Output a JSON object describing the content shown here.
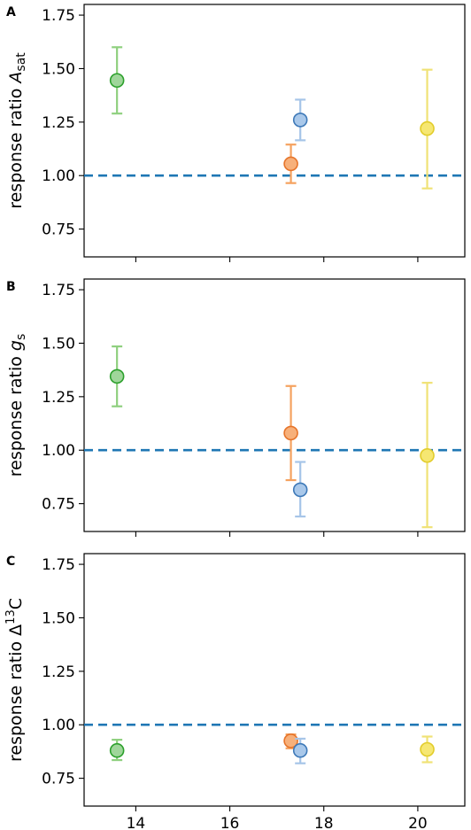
{
  "chart_data": [
    {
      "type": "scatter",
      "panel_label": "A",
      "ylabel": {
        "prefix": "response ratio ",
        "symbol": "A",
        "subscript": "sat"
      },
      "xlim": [
        12.9,
        21.0
      ],
      "ylim": [
        0.62,
        1.8
      ],
      "xticks": [
        14,
        16,
        18,
        20
      ],
      "yticks": [
        0.75,
        1.0,
        1.25,
        1.5,
        1.75
      ],
      "ytick_labels": [
        "0.75",
        "1.00",
        "1.25",
        "1.50",
        "1.75"
      ],
      "reference_line": {
        "y": 1.0,
        "style": "dashed",
        "color": "#1f77b4"
      },
      "points": [
        {
          "x": 13.6,
          "y": 1.445,
          "err_low": 1.29,
          "err_high": 1.6,
          "fill": "#9fd69a",
          "edge": "#2ca02c",
          "errcolor": "#8fd07f"
        },
        {
          "x": 17.3,
          "y": 1.055,
          "err_low": 0.965,
          "err_high": 1.145,
          "fill": "#f7b07a",
          "edge": "#e6742a",
          "errcolor": "#f5a25f"
        },
        {
          "x": 17.5,
          "y": 1.26,
          "err_low": 1.165,
          "err_high": 1.355,
          "fill": "#a9c8ea",
          "edge": "#3e79b8",
          "errcolor": "#a6c5e8"
        },
        {
          "x": 20.2,
          "y": 1.22,
          "err_low": 0.94,
          "err_high": 1.495,
          "fill": "#f6e772",
          "edge": "#e2cc2a",
          "errcolor": "#f0e276"
        }
      ]
    },
    {
      "type": "scatter",
      "panel_label": "B",
      "ylabel": {
        "prefix": "response ratio ",
        "symbol": "g",
        "subscript": "s"
      },
      "xlim": [
        12.9,
        21.0
      ],
      "ylim": [
        0.62,
        1.8
      ],
      "xticks": [
        14,
        16,
        18,
        20
      ],
      "yticks": [
        0.75,
        1.0,
        1.25,
        1.5,
        1.75
      ],
      "ytick_labels": [
        "0.75",
        "1.00",
        "1.25",
        "1.50",
        "1.75"
      ],
      "reference_line": {
        "y": 1.0,
        "style": "dashed",
        "color": "#1f77b4"
      },
      "points": [
        {
          "x": 13.6,
          "y": 1.345,
          "err_low": 1.205,
          "err_high": 1.485,
          "fill": "#9fd69a",
          "edge": "#2ca02c",
          "errcolor": "#8fd07f"
        },
        {
          "x": 17.3,
          "y": 1.08,
          "err_low": 0.86,
          "err_high": 1.3,
          "fill": "#f7b07a",
          "edge": "#e6742a",
          "errcolor": "#f5a25f"
        },
        {
          "x": 17.5,
          "y": 0.815,
          "err_low": 0.69,
          "err_high": 0.945,
          "fill": "#a9c8ea",
          "edge": "#3e79b8",
          "errcolor": "#a6c5e8"
        },
        {
          "x": 20.2,
          "y": 0.975,
          "err_low": 0.64,
          "err_high": 1.315,
          "fill": "#f6e772",
          "edge": "#e2cc2a",
          "errcolor": "#f0e276"
        }
      ]
    },
    {
      "type": "scatter",
      "panel_label": "C",
      "ylabel": {
        "prefix": "response ratio Δ",
        "superscript": "13",
        "suffix": "C"
      },
      "xlim": [
        12.9,
        21.0
      ],
      "ylim": [
        0.62,
        1.8
      ],
      "xticks": [
        14,
        16,
        18,
        20
      ],
      "xtick_labels": [
        "14",
        "16",
        "18",
        "20"
      ],
      "yticks": [
        0.75,
        1.0,
        1.25,
        1.5,
        1.75
      ],
      "ytick_labels": [
        "0.75",
        "1.00",
        "1.25",
        "1.50",
        "1.75"
      ],
      "reference_line": {
        "y": 1.0,
        "style": "dashed",
        "color": "#1f77b4"
      },
      "points": [
        {
          "x": 13.6,
          "y": 0.88,
          "err_low": 0.835,
          "err_high": 0.93,
          "fill": "#9fd69a",
          "edge": "#2ca02c",
          "errcolor": "#8fd07f"
        },
        {
          "x": 17.3,
          "y": 0.925,
          "err_low": 0.89,
          "err_high": 0.955,
          "fill": "#f7b07a",
          "edge": "#e6742a",
          "errcolor": "#f5a25f"
        },
        {
          "x": 17.5,
          "y": 0.88,
          "err_low": 0.82,
          "err_high": 0.935,
          "fill": "#a9c8ea",
          "edge": "#3e79b8",
          "errcolor": "#a6c5e8"
        },
        {
          "x": 20.2,
          "y": 0.885,
          "err_low": 0.825,
          "err_high": 0.945,
          "fill": "#f6e772",
          "edge": "#e2cc2a",
          "errcolor": "#f0e276"
        }
      ]
    }
  ]
}
